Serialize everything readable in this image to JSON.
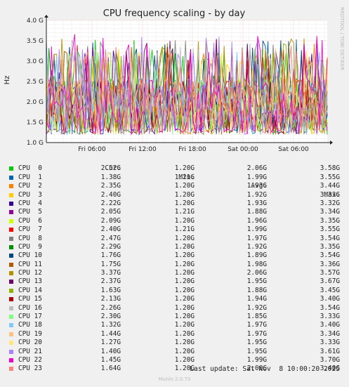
{
  "chart_data": {
    "type": "line",
    "title": "CPU frequency scaling - by day",
    "ylabel": "Hz",
    "yticks": [
      "1.0 G",
      "1.5 G",
      "2.0 G",
      "2.5 G",
      "3.0 G",
      "3.5 G",
      "4.0 G"
    ],
    "ylim": [
      1.0,
      4.0
    ],
    "xticks": [
      "Fri 06:00",
      "Fri 12:00",
      "Fri 18:00",
      "Sat 00:00",
      "Sat 06:00"
    ],
    "grid": true,
    "side_text": "RRDTOOL / TOBI OETIKER",
    "columns": [
      "Cur:",
      "Min:",
      "Avg:",
      "Max:"
    ],
    "series": [
      {
        "name": "CPU  0",
        "color": "#00cc00",
        "cur": "2.52G",
        "min": "1.20G",
        "avg": "2.06G",
        "max": "3.58G"
      },
      {
        "name": "CPU  1",
        "color": "#0066b3",
        "cur": "1.38G",
        "min": "1.21G",
        "avg": "1.99G",
        "max": "3.55G"
      },
      {
        "name": "CPU  2",
        "color": "#ff8000",
        "cur": "2.35G",
        "min": "1.20G",
        "avg": "1.93G",
        "max": "3.44G"
      },
      {
        "name": "CPU  3",
        "color": "#ffcc00",
        "cur": "2.40G",
        "min": "1.20G",
        "avg": "1.92G",
        "max": "3.33G"
      },
      {
        "name": "CPU  4",
        "color": "#330099",
        "cur": "2.22G",
        "min": "1.20G",
        "avg": "1.93G",
        "max": "3.32G"
      },
      {
        "name": "CPU  5",
        "color": "#990099",
        "cur": "2.05G",
        "min": "1.21G",
        "avg": "1.88G",
        "max": "3.34G"
      },
      {
        "name": "CPU  6",
        "color": "#ccff00",
        "cur": "2.09G",
        "min": "1.20G",
        "avg": "1.96G",
        "max": "3.35G"
      },
      {
        "name": "CPU  7",
        "color": "#ff0000",
        "cur": "2.40G",
        "min": "1.21G",
        "avg": "1.99G",
        "max": "3.55G"
      },
      {
        "name": "CPU  8",
        "color": "#808080",
        "cur": "2.47G",
        "min": "1.20G",
        "avg": "1.97G",
        "max": "3.54G"
      },
      {
        "name": "CPU  9",
        "color": "#008f00",
        "cur": "2.29G",
        "min": "1.20G",
        "avg": "1.92G",
        "max": "3.35G"
      },
      {
        "name": "CPU 10",
        "color": "#00487d",
        "cur": "1.76G",
        "min": "1.20G",
        "avg": "1.89G",
        "max": "3.54G"
      },
      {
        "name": "CPU 11",
        "color": "#b35a00",
        "cur": "1.75G",
        "min": "1.20G",
        "avg": "1.98G",
        "max": "3.36G"
      },
      {
        "name": "CPU 12",
        "color": "#b38f00",
        "cur": "3.37G",
        "min": "1.20G",
        "avg": "2.06G",
        "max": "3.57G"
      },
      {
        "name": "CPU 13",
        "color": "#6b006b",
        "cur": "2.37G",
        "min": "1.20G",
        "avg": "1.95G",
        "max": "3.67G"
      },
      {
        "name": "CPU 14",
        "color": "#8fb300",
        "cur": "1.63G",
        "min": "1.20G",
        "avg": "1.88G",
        "max": "3.45G"
      },
      {
        "name": "CPU 15",
        "color": "#b30000",
        "cur": "2.13G",
        "min": "1.20G",
        "avg": "1.94G",
        "max": "3.40G"
      },
      {
        "name": "CPU 16",
        "color": "#bebebe",
        "cur": "2.26G",
        "min": "1.20G",
        "avg": "1.92G",
        "max": "3.54G"
      },
      {
        "name": "CPU 17",
        "color": "#80ff80",
        "cur": "2.30G",
        "min": "1.20G",
        "avg": "1.85G",
        "max": "3.33G"
      },
      {
        "name": "CPU 18",
        "color": "#80c9ff",
        "cur": "1.32G",
        "min": "1.20G",
        "avg": "1.97G",
        "max": "3.40G"
      },
      {
        "name": "CPU 19",
        "color": "#ffc080",
        "cur": "1.44G",
        "min": "1.20G",
        "avg": "1.97G",
        "max": "3.34G"
      },
      {
        "name": "CPU 20",
        "color": "#ffe680",
        "cur": "1.27G",
        "min": "1.20G",
        "avg": "1.95G",
        "max": "3.33G"
      },
      {
        "name": "CPU 21",
        "color": "#aa80ff",
        "cur": "1.40G",
        "min": "1.20G",
        "avg": "1.95G",
        "max": "3.61G"
      },
      {
        "name": "CPU 22",
        "color": "#ee00cc",
        "cur": "1.45G",
        "min": "1.20G",
        "avg": "1.99G",
        "max": "3.70G"
      },
      {
        "name": "CPU 23",
        "color": "#ff8080",
        "cur": "1.64G",
        "min": "1.20G",
        "avg": "2.00G",
        "max": "3.40G"
      }
    ]
  },
  "last_update": "Last update: Sat Nov  8 10:00:20 2025",
  "munin_version": "Munin 2.0.73"
}
